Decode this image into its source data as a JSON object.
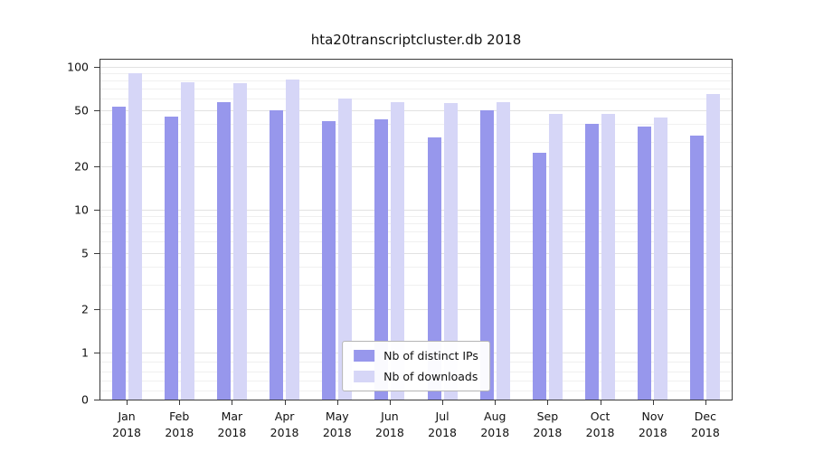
{
  "chart_data": {
    "type": "bar",
    "title": "hta20transcriptcluster.db 2018",
    "scale": "symlog",
    "grid": true,
    "legend_position": "lower center inside",
    "xlabel": "",
    "ylabel": "",
    "ylim": [
      0,
      100
    ],
    "y_ticks": [
      0,
      1,
      2,
      5,
      10,
      20,
      50,
      100
    ],
    "categories": [
      "Jan 2018",
      "Feb 2018",
      "Mar 2018",
      "Apr 2018",
      "May 2018",
      "Jun 2018",
      "Jul 2018",
      "Aug 2018",
      "Sep 2018",
      "Oct 2018",
      "Nov 2018",
      "Dec 2018"
    ],
    "series": [
      {
        "name": "Nb of distinct IPs",
        "color": "#9797ec",
        "values": [
          53,
          45,
          57,
          50,
          42,
          43,
          32,
          50,
          25,
          40,
          38,
          33
        ]
      },
      {
        "name": "Nb of downloads",
        "color": "#d6d6f7",
        "values": [
          90,
          78,
          77,
          81,
          60,
          57,
          56,
          57,
          47,
          47,
          44,
          65
        ]
      }
    ]
  }
}
